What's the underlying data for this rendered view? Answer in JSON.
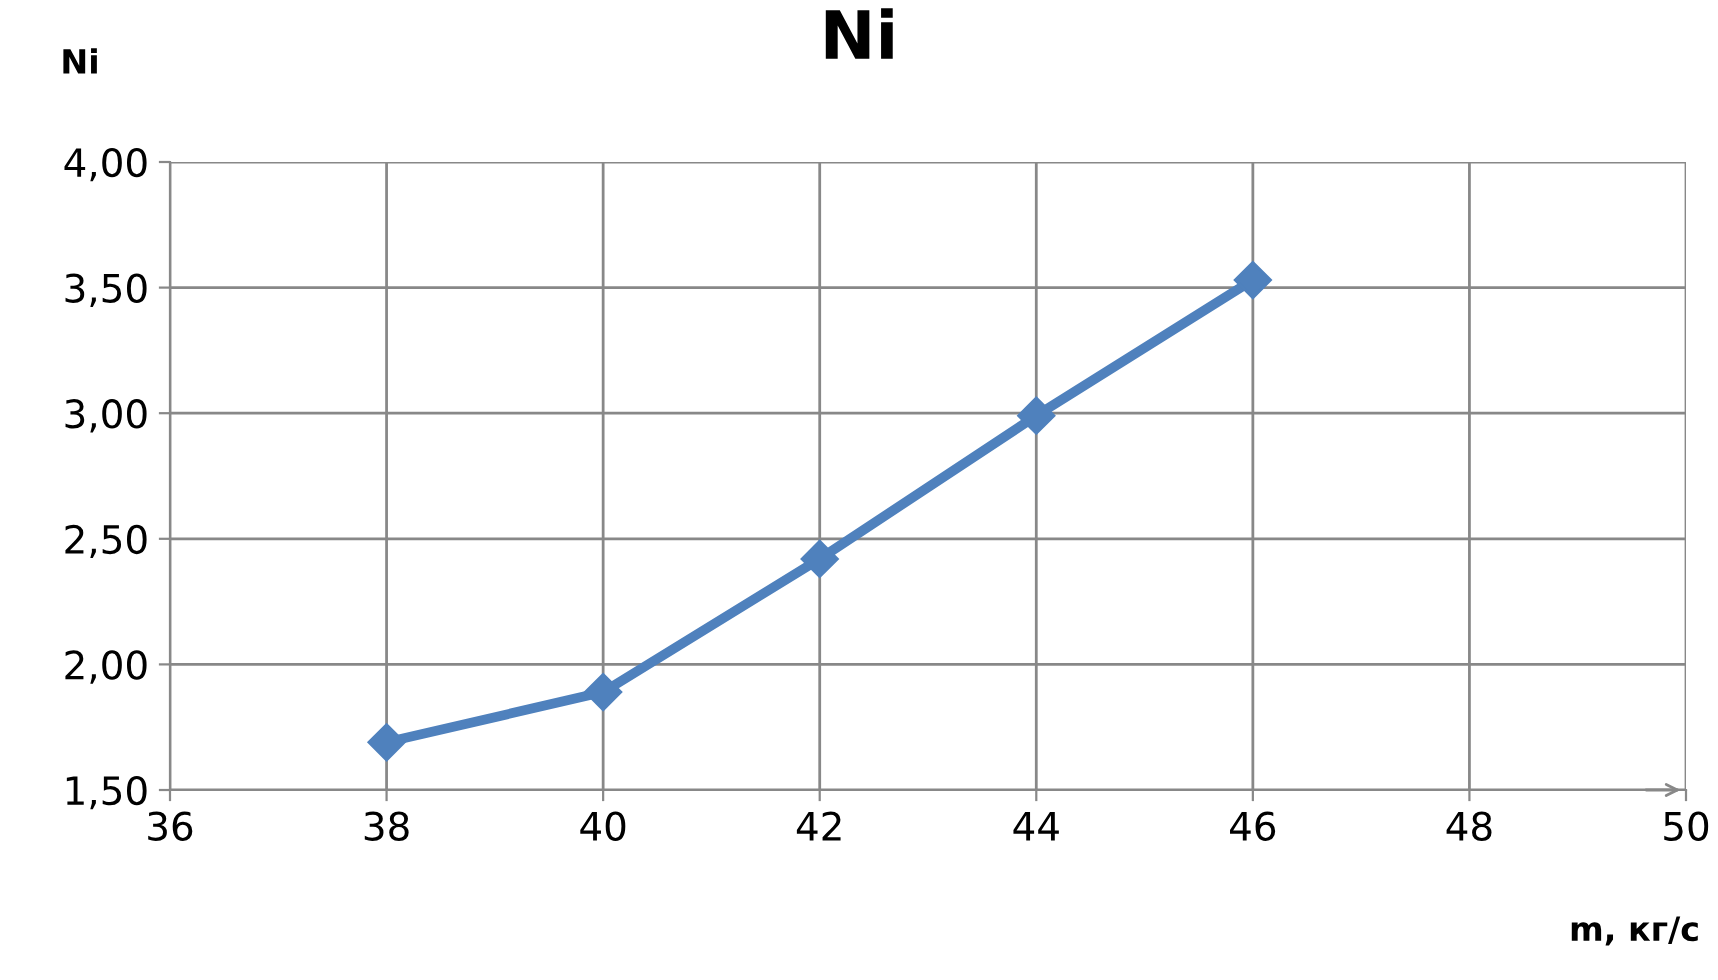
{
  "chart_data": {
    "type": "line",
    "title": "Ni",
    "ylabel": "Ni",
    "xlabel": "m, кг/с",
    "x": [
      38,
      40,
      42,
      44,
      46
    ],
    "series": [
      {
        "color": "#4f81bd",
        "values": [
          1.69,
          1.89,
          2.42,
          2.99,
          3.53
        ]
      }
    ],
    "xlim": [
      36,
      50
    ],
    "xticks": [
      36,
      38,
      40,
      42,
      44,
      46,
      48,
      50
    ],
    "ylim": [
      1.5,
      4.0
    ],
    "yticks": [
      {
        "value": 1.5,
        "label": "1,50"
      },
      {
        "value": 2.0,
        "label": "2,00"
      },
      {
        "value": 2.5,
        "label": "2,50"
      },
      {
        "value": 3.0,
        "label": "3,00"
      },
      {
        "value": 3.5,
        "label": "3,50"
      },
      {
        "value": 4.0,
        "label": "4,00"
      }
    ],
    "grid": true,
    "marker": "diamond",
    "line_style": "solid"
  }
}
